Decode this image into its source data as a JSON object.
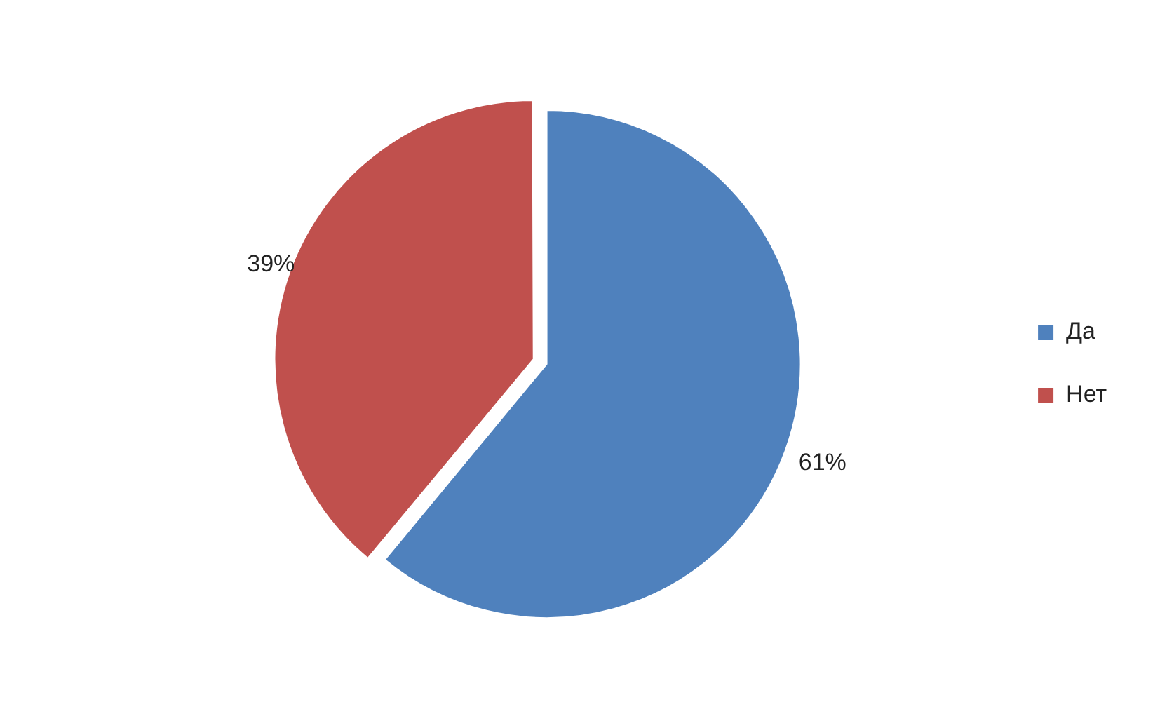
{
  "chart_data": {
    "type": "pie",
    "categories": [
      "Да",
      "Нет"
    ],
    "values": [
      61,
      39
    ],
    "colors": [
      "#4f81bd",
      "#c0504d"
    ],
    "value_labels": [
      "61%",
      "39%"
    ],
    "legend": "right"
  }
}
